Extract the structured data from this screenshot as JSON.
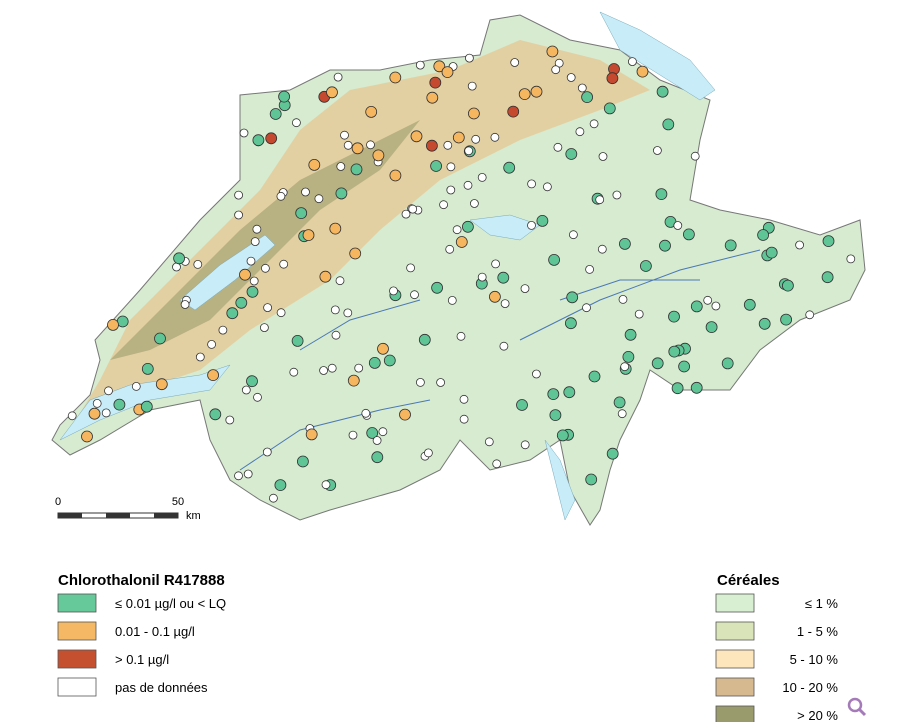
{
  "scale_bar": {
    "labels": [
      "0",
      "50"
    ],
    "unit": "km"
  },
  "legend_substance": {
    "title": "Chlorothalonil R417888",
    "items": [
      {
        "label": "≤ 0.01 µg/l  ou < LQ",
        "color": "#66c99a"
      },
      {
        "label": "0.01 - 0.1 µg/l",
        "color": "#f5b965"
      },
      {
        "label": "> 0.1 µg/l",
        "color": "#c4502f"
      },
      {
        "label": "pas de données",
        "color": "#ffffff"
      }
    ]
  },
  "legend_cereals": {
    "title": "Céréales",
    "items": [
      {
        "label": "≤ 1 %",
        "color": "#d8efd2"
      },
      {
        "label": "1 - 5 %",
        "color": "#d9e5b9"
      },
      {
        "label": "5 - 10 %",
        "color": "#fde6bb"
      },
      {
        "label": "10 - 20 %",
        "color": "#d7b98f"
      },
      {
        "label": "> 20 %",
        "color": "#9a9b6d"
      }
    ]
  }
}
